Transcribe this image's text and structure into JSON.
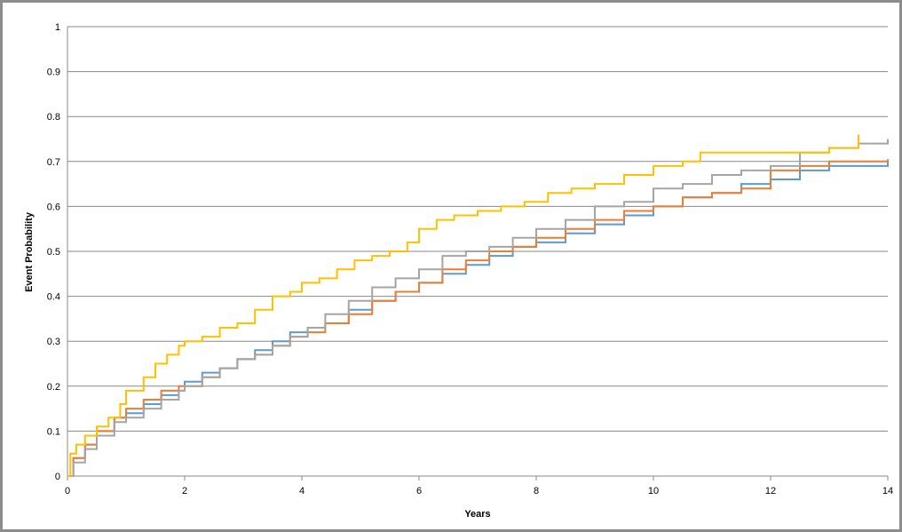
{
  "chart_data": {
    "type": "line",
    "title": "",
    "xlabel": "Years",
    "ylabel": "Event Probability",
    "xlim": [
      0,
      14
    ],
    "ylim": [
      0,
      1
    ],
    "x_ticks": [
      0,
      2,
      4,
      6,
      8,
      10,
      12,
      14
    ],
    "y_ticks": [
      0,
      0.1,
      0.2,
      0.3,
      0.4,
      0.5,
      0.6,
      0.7,
      0.8,
      0.9,
      1
    ],
    "y_tick_labels": [
      "0",
      "0.1",
      "0.2",
      "0.3",
      "0.4",
      "0.5",
      "0.6",
      "0.7",
      "0.8",
      "0.9",
      "1"
    ],
    "x_tick_labels": [
      "0",
      "2",
      "4",
      "6",
      "8",
      "10",
      "12",
      "14"
    ],
    "grid": "horizontal",
    "legend": "none",
    "series": [
      {
        "color": "#5b9bd5",
        "points": [
          [
            0,
            0
          ],
          [
            0.1,
            0.04
          ],
          [
            0.3,
            0.07
          ],
          [
            0.5,
            0.1
          ],
          [
            0.8,
            0.13
          ],
          [
            1.0,
            0.14
          ],
          [
            1.3,
            0.16
          ],
          [
            1.6,
            0.18
          ],
          [
            1.9,
            0.19
          ],
          [
            2.0,
            0.21
          ],
          [
            2.3,
            0.23
          ],
          [
            2.6,
            0.24
          ],
          [
            2.9,
            0.26
          ],
          [
            3.2,
            0.28
          ],
          [
            3.5,
            0.3
          ],
          [
            3.8,
            0.32
          ],
          [
            4.1,
            0.33
          ],
          [
            4.4,
            0.34
          ],
          [
            4.8,
            0.37
          ],
          [
            5.2,
            0.39
          ],
          [
            5.6,
            0.41
          ],
          [
            6.0,
            0.43
          ],
          [
            6.4,
            0.45
          ],
          [
            6.8,
            0.47
          ],
          [
            7.2,
            0.49
          ],
          [
            7.6,
            0.51
          ],
          [
            8.0,
            0.52
          ],
          [
            8.5,
            0.54
          ],
          [
            9.0,
            0.56
          ],
          [
            9.5,
            0.58
          ],
          [
            10.0,
            0.6
          ],
          [
            10.5,
            0.62
          ],
          [
            11.0,
            0.63
          ],
          [
            11.5,
            0.65
          ],
          [
            12.0,
            0.66
          ],
          [
            12.5,
            0.68
          ],
          [
            13.0,
            0.69
          ],
          [
            13.5,
            0.69
          ],
          [
            14.0,
            0.7
          ]
        ]
      },
      {
        "color": "#ed7d31",
        "points": [
          [
            0,
            0
          ],
          [
            0.1,
            0.04
          ],
          [
            0.3,
            0.07
          ],
          [
            0.5,
            0.1
          ],
          [
            0.8,
            0.13
          ],
          [
            1.0,
            0.15
          ],
          [
            1.3,
            0.17
          ],
          [
            1.6,
            0.19
          ],
          [
            1.9,
            0.2
          ],
          [
            2.0,
            0.2
          ],
          [
            2.3,
            0.22
          ],
          [
            2.6,
            0.24
          ],
          [
            2.9,
            0.26
          ],
          [
            3.2,
            0.27
          ],
          [
            3.5,
            0.29
          ],
          [
            3.8,
            0.31
          ],
          [
            4.1,
            0.32
          ],
          [
            4.4,
            0.34
          ],
          [
            4.8,
            0.36
          ],
          [
            5.2,
            0.39
          ],
          [
            5.6,
            0.41
          ],
          [
            6.0,
            0.43
          ],
          [
            6.4,
            0.46
          ],
          [
            6.8,
            0.48
          ],
          [
            7.2,
            0.5
          ],
          [
            7.6,
            0.51
          ],
          [
            8.0,
            0.53
          ],
          [
            8.5,
            0.55
          ],
          [
            9.0,
            0.57
          ],
          [
            9.5,
            0.59
          ],
          [
            10.0,
            0.6
          ],
          [
            10.5,
            0.62
          ],
          [
            11.0,
            0.63
          ],
          [
            11.5,
            0.64
          ],
          [
            12.0,
            0.68
          ],
          [
            12.5,
            0.69
          ],
          [
            13.0,
            0.7
          ],
          [
            13.5,
            0.7
          ],
          [
            14.0,
            0.705
          ]
        ]
      },
      {
        "color": "#a5a5a5",
        "points": [
          [
            0,
            0
          ],
          [
            0.1,
            0.03
          ],
          [
            0.3,
            0.06
          ],
          [
            0.5,
            0.09
          ],
          [
            0.8,
            0.12
          ],
          [
            1.0,
            0.13
          ],
          [
            1.3,
            0.15
          ],
          [
            1.6,
            0.17
          ],
          [
            1.9,
            0.19
          ],
          [
            2.0,
            0.2
          ],
          [
            2.3,
            0.22
          ],
          [
            2.6,
            0.24
          ],
          [
            2.9,
            0.26
          ],
          [
            3.2,
            0.27
          ],
          [
            3.5,
            0.29
          ],
          [
            3.8,
            0.31
          ],
          [
            4.1,
            0.33
          ],
          [
            4.4,
            0.36
          ],
          [
            4.8,
            0.39
          ],
          [
            5.2,
            0.42
          ],
          [
            5.6,
            0.44
          ],
          [
            6.0,
            0.46
          ],
          [
            6.4,
            0.49
          ],
          [
            6.8,
            0.5
          ],
          [
            7.2,
            0.51
          ],
          [
            7.6,
            0.53
          ],
          [
            8.0,
            0.55
          ],
          [
            8.5,
            0.57
          ],
          [
            9.0,
            0.6
          ],
          [
            9.5,
            0.61
          ],
          [
            10.0,
            0.64
          ],
          [
            10.5,
            0.65
          ],
          [
            11.0,
            0.67
          ],
          [
            11.5,
            0.68
          ],
          [
            12.0,
            0.69
          ],
          [
            12.5,
            0.72
          ],
          [
            13.0,
            0.73
          ],
          [
            13.5,
            0.74
          ],
          [
            14.0,
            0.75
          ]
        ]
      },
      {
        "color": "#ffc000",
        "points": [
          [
            0,
            0
          ],
          [
            0.05,
            0.05
          ],
          [
            0.15,
            0.07
          ],
          [
            0.3,
            0.09
          ],
          [
            0.5,
            0.11
          ],
          [
            0.7,
            0.13
          ],
          [
            0.9,
            0.16
          ],
          [
            1.0,
            0.19
          ],
          [
            1.3,
            0.22
          ],
          [
            1.5,
            0.25
          ],
          [
            1.7,
            0.27
          ],
          [
            1.9,
            0.29
          ],
          [
            2.0,
            0.3
          ],
          [
            2.3,
            0.31
          ],
          [
            2.6,
            0.33
          ],
          [
            2.9,
            0.34
          ],
          [
            3.2,
            0.37
          ],
          [
            3.5,
            0.4
          ],
          [
            3.8,
            0.41
          ],
          [
            4.0,
            0.43
          ],
          [
            4.3,
            0.44
          ],
          [
            4.6,
            0.46
          ],
          [
            4.9,
            0.48
          ],
          [
            5.2,
            0.49
          ],
          [
            5.5,
            0.5
          ],
          [
            5.8,
            0.52
          ],
          [
            6.0,
            0.55
          ],
          [
            6.3,
            0.57
          ],
          [
            6.6,
            0.58
          ],
          [
            7.0,
            0.59
          ],
          [
            7.4,
            0.6
          ],
          [
            7.8,
            0.61
          ],
          [
            8.2,
            0.63
          ],
          [
            8.6,
            0.64
          ],
          [
            9.0,
            0.65
          ],
          [
            9.5,
            0.67
          ],
          [
            10.0,
            0.69
          ],
          [
            10.5,
            0.7
          ],
          [
            10.8,
            0.72
          ],
          [
            11.5,
            0.72
          ],
          [
            12.0,
            0.72
          ],
          [
            13.0,
            0.73
          ],
          [
            13.5,
            0.76
          ]
        ]
      }
    ]
  }
}
